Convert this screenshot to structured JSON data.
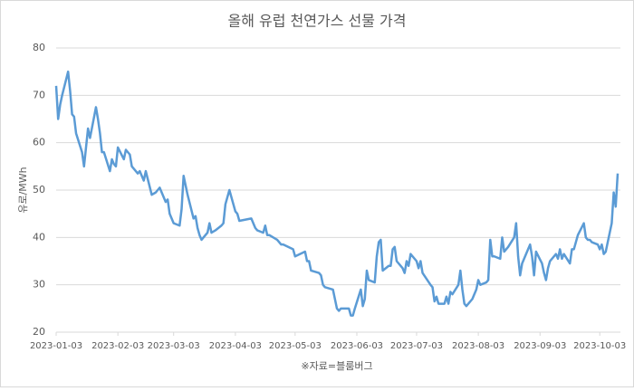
{
  "chart_data": {
    "type": "line",
    "title": "올해 유럽 천연가스 선물 가격",
    "y_label": "유로/MWh",
    "x_label": "※자료=블룸버그",
    "x": [
      "2023-01-03",
      "2023-01-04",
      "2023-01-05",
      "2023-01-06",
      "2023-01-09",
      "2023-01-10",
      "2023-01-11",
      "2023-01-12",
      "2023-01-13",
      "2023-01-16",
      "2023-01-17",
      "2023-01-18",
      "2023-01-19",
      "2023-01-20",
      "2023-01-23",
      "2023-01-24",
      "2023-01-25",
      "2023-01-26",
      "2023-01-27",
      "2023-01-30",
      "2023-01-31",
      "2023-02-01",
      "2023-02-02",
      "2023-02-03",
      "2023-02-06",
      "2023-02-07",
      "2023-02-08",
      "2023-02-09",
      "2023-02-10",
      "2023-02-13",
      "2023-02-14",
      "2023-02-15",
      "2023-02-16",
      "2023-02-17",
      "2023-02-20",
      "2023-02-22",
      "2023-02-24",
      "2023-02-27",
      "2023-02-28",
      "2023-03-01",
      "2023-03-02",
      "2023-03-03",
      "2023-03-06",
      "2023-03-07",
      "2023-03-08",
      "2023-03-09",
      "2023-03-10",
      "2023-03-13",
      "2023-03-14",
      "2023-03-15",
      "2023-03-16",
      "2023-03-17",
      "2023-03-20",
      "2023-03-21",
      "2023-03-22",
      "2023-03-24",
      "2023-03-27",
      "2023-03-28",
      "2023-03-29",
      "2023-03-30",
      "2023-03-31",
      "2023-04-03",
      "2023-04-04",
      "2023-04-05",
      "2023-04-11",
      "2023-04-13",
      "2023-04-14",
      "2023-04-17",
      "2023-04-18",
      "2023-04-19",
      "2023-04-20",
      "2023-04-24",
      "2023-04-25",
      "2023-04-26",
      "2023-04-27",
      "2023-05-02",
      "2023-05-03",
      "2023-05-08",
      "2023-05-09",
      "2023-05-10",
      "2023-05-11",
      "2023-05-15",
      "2023-05-16",
      "2023-05-17",
      "2023-05-18",
      "2023-05-22",
      "2023-05-23",
      "2023-05-24",
      "2023-05-25",
      "2023-05-26",
      "2023-05-30",
      "2023-05-31",
      "2023-06-01",
      "2023-06-02",
      "2023-06-05",
      "2023-06-06",
      "2023-06-07",
      "2023-06-08",
      "2023-06-09",
      "2023-06-12",
      "2023-06-13",
      "2023-06-14",
      "2023-06-15",
      "2023-06-16",
      "2023-06-19",
      "2023-06-20",
      "2023-06-21",
      "2023-06-22",
      "2023-06-23",
      "2023-06-26",
      "2023-06-27",
      "2023-06-28",
      "2023-06-29",
      "2023-06-30",
      "2023-07-03",
      "2023-07-04",
      "2023-07-05",
      "2023-07-06",
      "2023-07-10",
      "2023-07-11",
      "2023-07-12",
      "2023-07-13",
      "2023-07-14",
      "2023-07-17",
      "2023-07-18",
      "2023-07-19",
      "2023-07-20",
      "2023-07-21",
      "2023-07-24",
      "2023-07-25",
      "2023-07-26",
      "2023-07-27",
      "2023-07-28",
      "2023-07-31",
      "2023-08-01",
      "2023-08-02",
      "2023-08-03",
      "2023-08-04",
      "2023-08-07",
      "2023-08-08",
      "2023-08-09",
      "2023-08-10",
      "2023-08-11",
      "2023-08-14",
      "2023-08-15",
      "2023-08-16",
      "2023-08-17",
      "2023-08-18",
      "2023-08-21",
      "2023-08-22",
      "2023-08-23",
      "2023-08-24",
      "2023-08-25",
      "2023-08-28",
      "2023-08-29",
      "2023-08-30",
      "2023-08-31",
      "2023-09-01",
      "2023-09-04",
      "2023-09-05",
      "2023-09-06",
      "2023-09-07",
      "2023-09-08",
      "2023-09-11",
      "2023-09-12",
      "2023-09-13",
      "2023-09-14",
      "2023-09-15",
      "2023-09-18",
      "2023-09-19",
      "2023-09-20",
      "2023-09-21",
      "2023-09-22",
      "2023-09-25",
      "2023-09-26",
      "2023-09-27",
      "2023-09-28",
      "2023-09-29",
      "2023-10-02",
      "2023-10-03",
      "2023-10-04",
      "2023-10-05",
      "2023-10-06",
      "2023-10-09",
      "2023-10-10",
      "2023-10-11",
      "2023-10-12"
    ],
    "series": [
      {
        "color": "#5b9bd5",
        "values": [
          72,
          65,
          68,
          70,
          75,
          71,
          66,
          65.5,
          62,
          58,
          55,
          59,
          63,
          61,
          67.5,
          65,
          62,
          58,
          58,
          54,
          56.5,
          55.5,
          55,
          59,
          56.5,
          58.5,
          58,
          57.5,
          55,
          53.5,
          54,
          53,
          52,
          54,
          49,
          49.5,
          50.5,
          47.5,
          48,
          45,
          44,
          43,
          42.5,
          46,
          53,
          51,
          49,
          44,
          44.5,
          42,
          40.5,
          39.5,
          41,
          43,
          41,
          41.5,
          42.5,
          43,
          47,
          48.5,
          50,
          45.5,
          45,
          43.5,
          44,
          42,
          41.5,
          41,
          42.5,
          40.5,
          40.5,
          39.5,
          39,
          38.5,
          38.5,
          37.5,
          36,
          37,
          35,
          35,
          33,
          32.5,
          32,
          30,
          29.5,
          29,
          27,
          25,
          24.5,
          25,
          25,
          23.5,
          23.5,
          25,
          29,
          25.5,
          27,
          33,
          31,
          30.5,
          36,
          39,
          39.5,
          33,
          34,
          34,
          37.5,
          38,
          35,
          33.5,
          32.5,
          35,
          34,
          36.5,
          35,
          33.5,
          35,
          32.5,
          30,
          29.5,
          26.5,
          27.5,
          26,
          26,
          27.5,
          26,
          28.5,
          28,
          30,
          33,
          29,
          26,
          25.5,
          27,
          28,
          29,
          31,
          30,
          30.5,
          31,
          39.5,
          36,
          36,
          35.5,
          40,
          37,
          37.5,
          38,
          40,
          43,
          36,
          32,
          34.5,
          37.5,
          38.5,
          36,
          32,
          37,
          34.5,
          32.5,
          31,
          33.5,
          35,
          36.5,
          35.5,
          37.5,
          35.5,
          36.5,
          34.5,
          37.5,
          37.5,
          39,
          40.5,
          43,
          40,
          39.5,
          39.5,
          39,
          38.5,
          37.5,
          38.5,
          36.5,
          37,
          43,
          49.5,
          46.5,
          53.5
        ]
      }
    ],
    "xlim": [
      "2023-01-03",
      "2023-10-12"
    ],
    "xticks": [
      "2023-01-03",
      "2023-02-03",
      "2023-03-03",
      "2023-04-03",
      "2023-05-03",
      "2023-06-03",
      "2023-07-03",
      "2023-08-03",
      "2023-09-03",
      "2023-10-03"
    ],
    "ylim": [
      20,
      80
    ],
    "yticks": [
      20,
      30,
      40,
      50,
      60,
      70,
      80
    ],
    "grid": true
  }
}
